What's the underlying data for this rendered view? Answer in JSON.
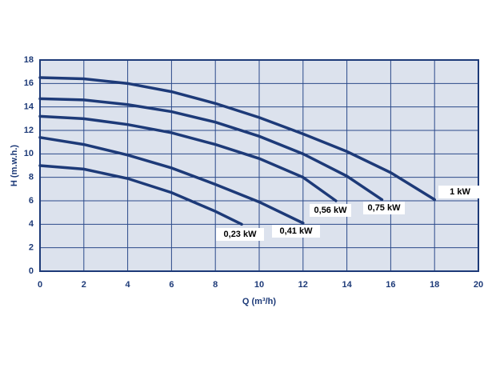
{
  "chart_data": {
    "type": "line",
    "x_label": "Q (m³/h)",
    "y_label": "H (m.w.h.)",
    "xlim": [
      0,
      20
    ],
    "xticks": [
      0,
      2,
      4,
      6,
      8,
      10,
      12,
      14,
      16,
      18,
      20
    ],
    "ylim": [
      0,
      18
    ],
    "yticks": [
      0,
      2,
      4,
      6,
      8,
      10,
      12,
      14,
      16,
      18
    ],
    "grid": true,
    "series": [
      {
        "name": "0,23 kW",
        "color": "#1d3a78",
        "x": [
          0,
          2,
          4,
          6,
          8,
          9.2
        ],
        "values": [
          9.0,
          8.7,
          7.9,
          6.7,
          5.1,
          4.0
        ]
      },
      {
        "name": "0,41 kW",
        "color": "#1d3a78",
        "x": [
          0,
          2,
          4,
          6,
          8,
          10,
          12
        ],
        "values": [
          11.4,
          10.8,
          9.9,
          8.8,
          7.4,
          5.9,
          4.1
        ]
      },
      {
        "name": "0,56 kW",
        "color": "#1d3a78",
        "x": [
          0,
          2,
          4,
          6,
          8,
          10,
          12,
          13.5
        ],
        "values": [
          13.2,
          13.0,
          12.5,
          11.8,
          10.8,
          9.6,
          8.0,
          6.0
        ]
      },
      {
        "name": "0,75 kW",
        "color": "#1d3a78",
        "x": [
          0,
          2,
          4,
          6,
          8,
          10,
          12,
          14,
          15.6
        ],
        "values": [
          14.7,
          14.6,
          14.2,
          13.6,
          12.7,
          11.5,
          10.0,
          8.1,
          6.1
        ]
      },
      {
        "name": "1 kW",
        "color": "#1d3a78",
        "x": [
          0,
          2,
          4,
          6,
          8,
          10,
          12,
          14,
          16,
          18
        ],
        "values": [
          16.5,
          16.4,
          16.0,
          15.3,
          14.3,
          13.1,
          11.7,
          10.2,
          8.4,
          6.1
        ]
      }
    ]
  }
}
